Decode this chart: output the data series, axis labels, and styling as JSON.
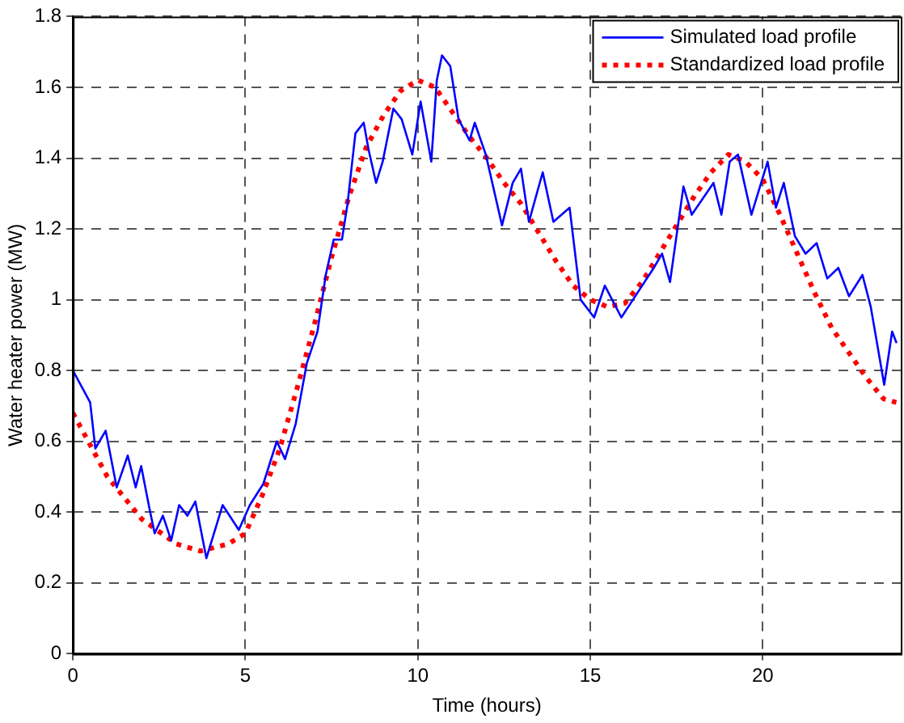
{
  "chart_data": {
    "type": "line",
    "xlabel": "Time (hours)",
    "ylabel": "Water heater power (MW)",
    "xlim": [
      0,
      24
    ],
    "xticks": [
      0,
      5,
      10,
      15,
      20
    ],
    "ylim": [
      0,
      1.8
    ],
    "yticks": [
      0,
      0.2,
      0.4,
      0.6,
      0.8,
      1,
      1.2,
      1.4,
      1.6,
      1.8
    ],
    "grid": true,
    "legend": "top right",
    "marker": "none",
    "series": [
      {
        "name": "Simulated load profile",
        "color": "#0000ff",
        "line_style": "solid",
        "x": [
          0,
          0.5,
          0.65,
          0.95,
          1.27,
          1.59,
          1.82,
          1.98,
          2.22,
          2.37,
          2.61,
          2.85,
          3.08,
          3.32,
          3.55,
          3.87,
          4.34,
          4.81,
          5.13,
          5.52,
          5.91,
          6.15,
          6.46,
          6.78,
          7.09,
          7.33,
          7.56,
          7.8,
          7.96,
          8.19,
          8.43,
          8.58,
          8.79,
          8.98,
          9.29,
          9.53,
          9.84,
          10.08,
          10.39,
          10.55,
          10.7,
          10.94,
          11.18,
          11.5,
          11.65,
          11.97,
          12.44,
          12.75,
          12.99,
          13.22,
          13.62,
          13.93,
          14.4,
          14.72,
          15.11,
          15.42,
          15.9,
          16.37,
          16.84,
          17.08,
          17.31,
          17.7,
          17.94,
          18.57,
          18.8,
          19.04,
          19.28,
          19.67,
          20.14,
          20.38,
          20.61,
          20.93,
          21.24,
          21.56,
          21.87,
          22.19,
          22.5,
          22.89,
          23.13,
          23.52,
          23.75,
          23.87
        ],
        "values": [
          0.8,
          0.71,
          0.58,
          0.63,
          0.47,
          0.56,
          0.47,
          0.53,
          0.41,
          0.34,
          0.39,
          0.32,
          0.42,
          0.39,
          0.43,
          0.27,
          0.42,
          0.35,
          0.42,
          0.48,
          0.6,
          0.55,
          0.65,
          0.82,
          0.91,
          1.07,
          1.17,
          1.17,
          1.27,
          1.47,
          1.5,
          1.42,
          1.33,
          1.39,
          1.54,
          1.51,
          1.41,
          1.56,
          1.39,
          1.62,
          1.69,
          1.66,
          1.51,
          1.45,
          1.5,
          1.41,
          1.21,
          1.33,
          1.37,
          1.22,
          1.36,
          1.22,
          1.26,
          1.0,
          0.95,
          1.04,
          0.95,
          1.02,
          1.09,
          1.13,
          1.05,
          1.32,
          1.24,
          1.33,
          1.24,
          1.39,
          1.41,
          1.24,
          1.39,
          1.26,
          1.33,
          1.18,
          1.13,
          1.16,
          1.06,
          1.09,
          1.01,
          1.07,
          0.98,
          0.76,
          0.91,
          0.88
        ]
      },
      {
        "name": "Standardized load profile",
        "color": "#ff0000",
        "line_style": "dotted",
        "x": [
          0,
          1,
          2,
          3,
          3.7,
          4.5,
          5,
          5.5,
          6,
          6.5,
          7,
          7.5,
          8,
          8.5,
          9,
          9.5,
          10,
          10.5,
          11,
          11.5,
          12,
          12.5,
          13,
          13.5,
          14,
          14.5,
          15,
          15.5,
          16,
          16.5,
          17,
          17.5,
          18,
          18.5,
          19,
          19.5,
          20,
          20.5,
          21,
          21.5,
          22,
          22.5,
          23,
          23.5,
          23.87
        ],
        "values": [
          0.68,
          0.5,
          0.38,
          0.31,
          0.29,
          0.31,
          0.34,
          0.45,
          0.58,
          0.75,
          0.93,
          1.12,
          1.29,
          1.43,
          1.52,
          1.59,
          1.62,
          1.6,
          1.53,
          1.46,
          1.4,
          1.33,
          1.27,
          1.19,
          1.11,
          1.04,
          1.0,
          0.98,
          0.99,
          1.05,
          1.13,
          1.21,
          1.29,
          1.36,
          1.41,
          1.39,
          1.34,
          1.24,
          1.13,
          1.02,
          0.92,
          0.85,
          0.78,
          0.72,
          0.71
        ]
      }
    ]
  }
}
